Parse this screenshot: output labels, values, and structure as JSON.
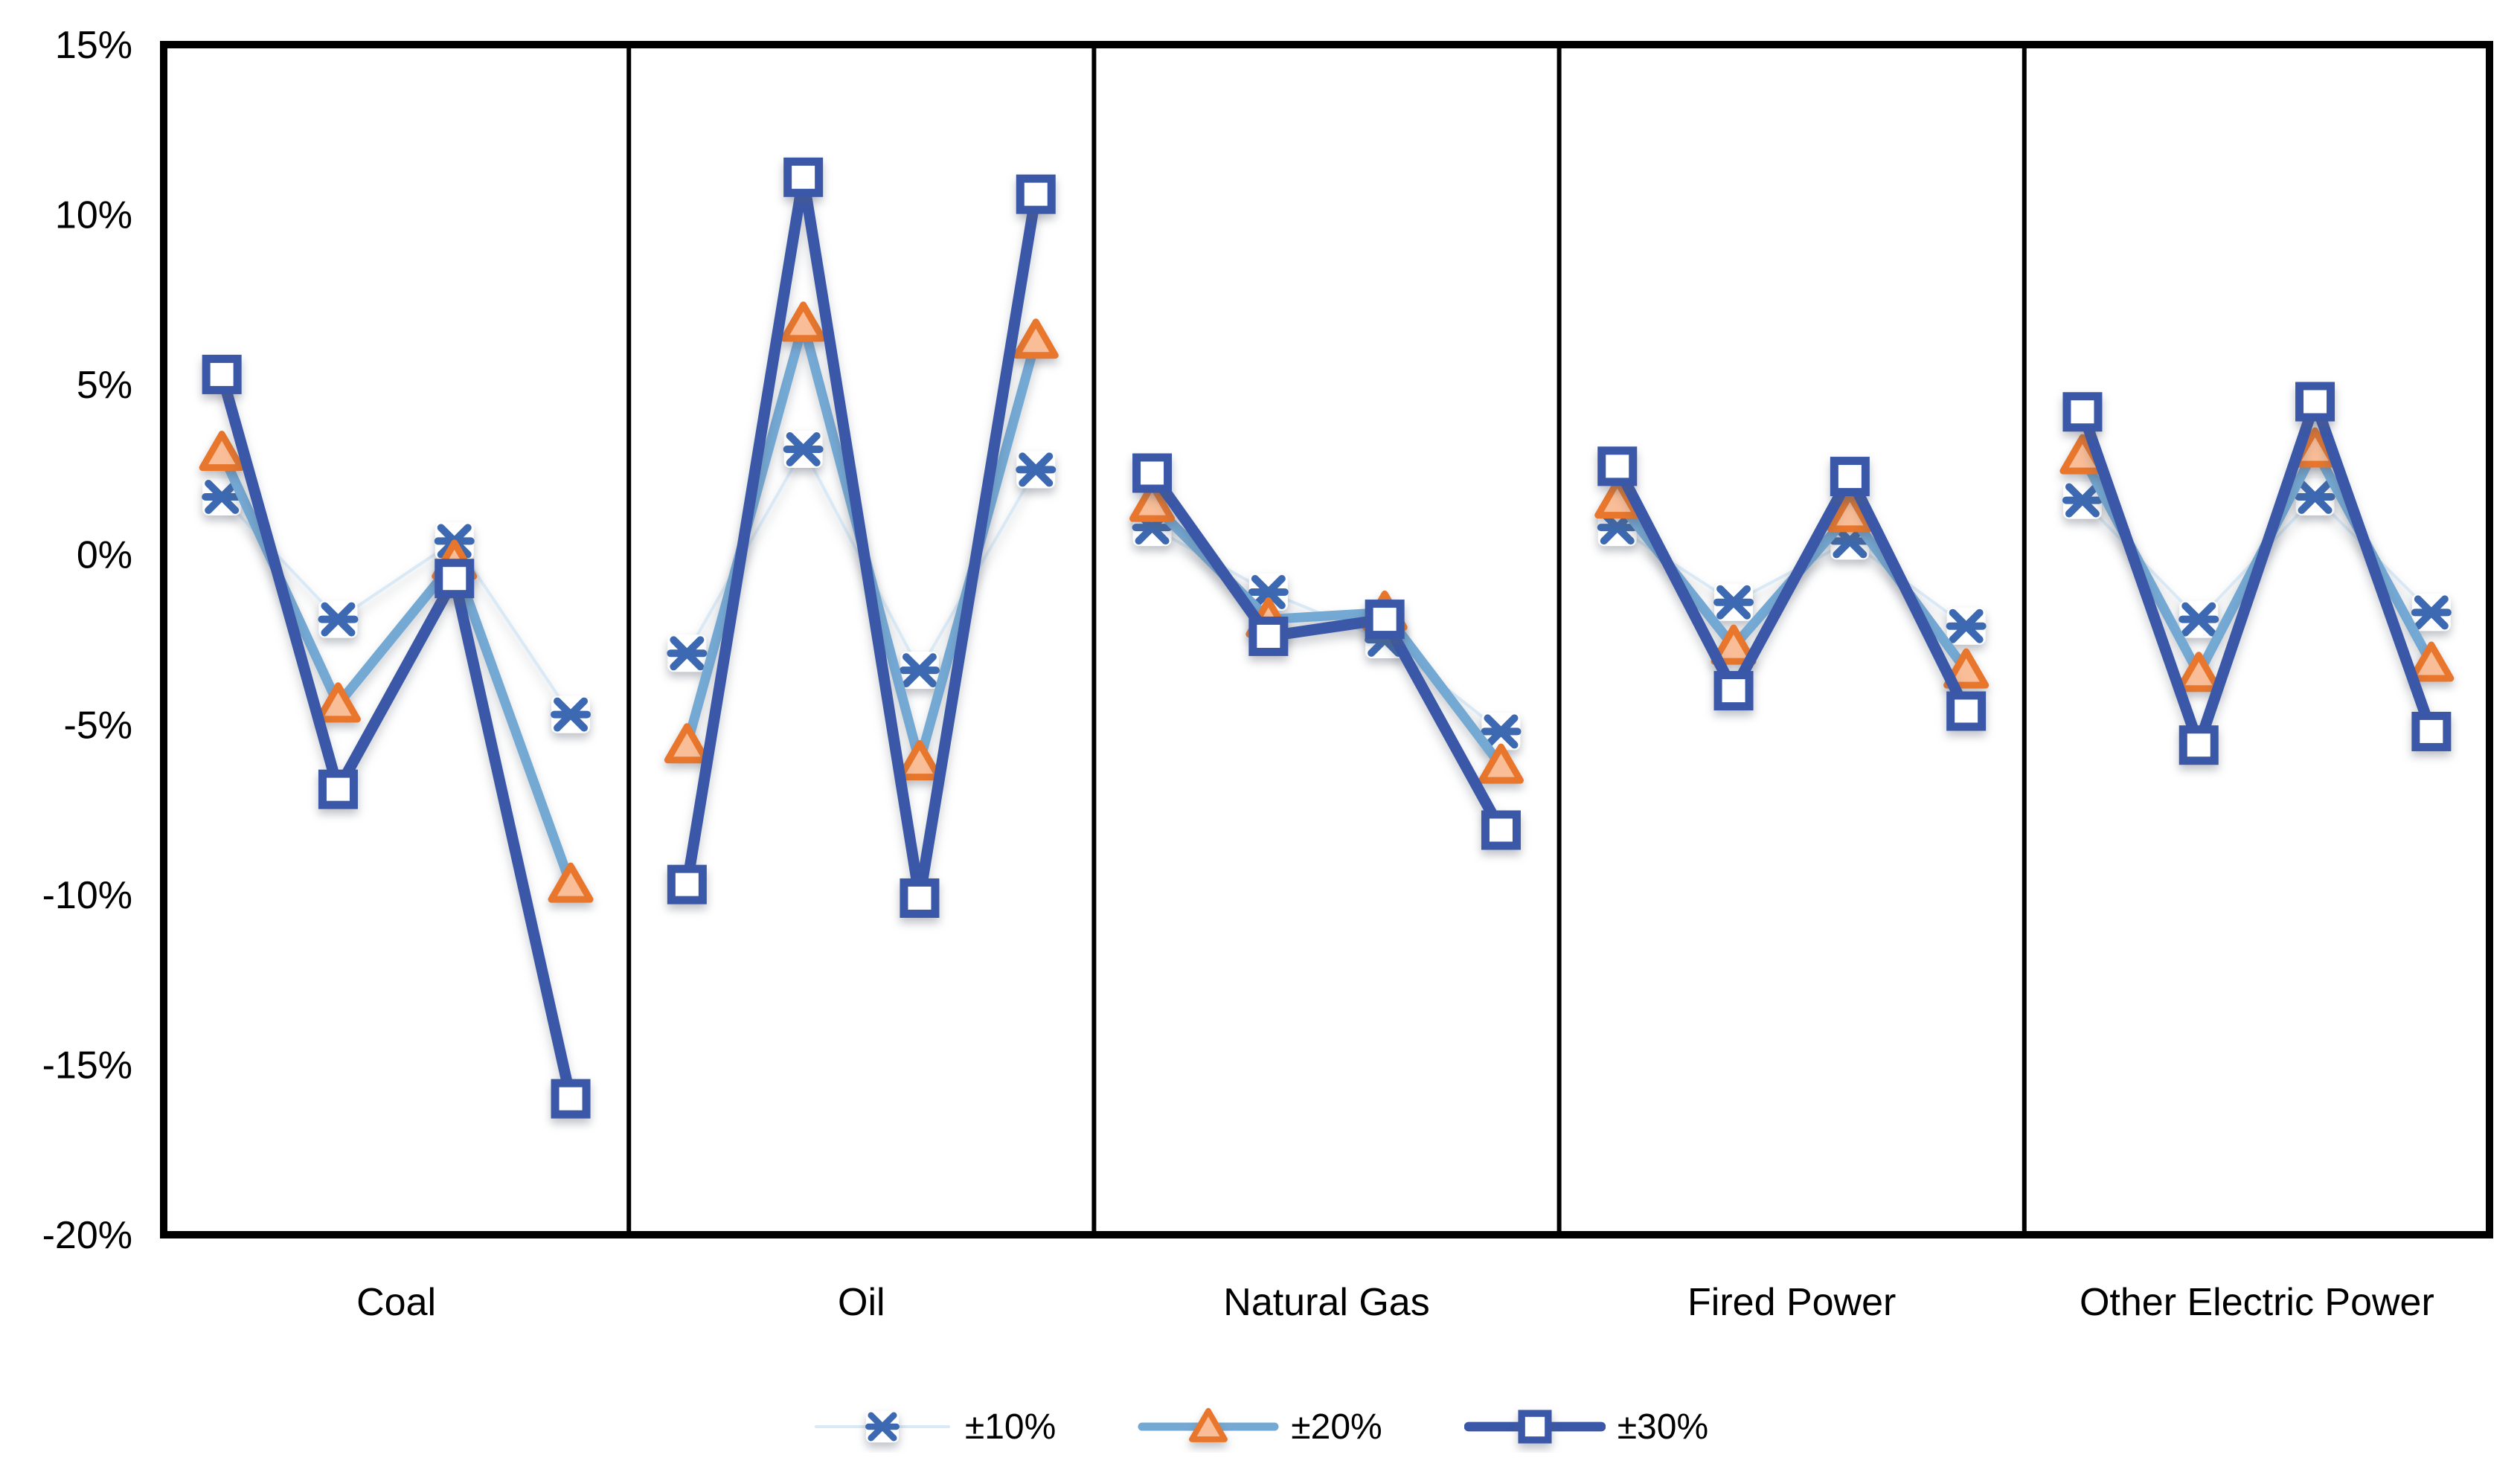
{
  "chart_data": {
    "type": "line",
    "title": "",
    "xlabel": "",
    "ylabel": "",
    "grid": false,
    "legend_position": "bottom",
    "background": "#ffffff",
    "axis_color": "#000000",
    "text_color": "#000000",
    "ylim": [
      -20,
      15
    ],
    "y_ticks": [
      {
        "v": 15,
        "label": "15%"
      },
      {
        "v": 10,
        "label": "10%"
      },
      {
        "v": 5,
        "label": "5%"
      },
      {
        "v": 0,
        "label": "0%"
      },
      {
        "v": -5,
        "label": "-5%"
      },
      {
        "v": -10,
        "label": "-10%"
      },
      {
        "v": -15,
        "label": "-15%"
      },
      {
        "v": -20,
        "label": "-20%"
      }
    ],
    "panels": [
      "Coal",
      "Oil",
      "Natural Gas",
      "Fired Power",
      "Other Electric Power"
    ],
    "points_per_panel": 4,
    "series": [
      {
        "name": "±10%",
        "marker": "asterisk",
        "marker_color": "#3c69b1",
        "line_color": "#d9e9f5",
        "line_width": 4,
        "values": [
          [
            1.7,
            -1.9,
            0.4,
            -4.7
          ],
          [
            -2.9,
            3.1,
            -3.4,
            2.5
          ],
          [
            0.8,
            -1.1,
            -2.5,
            -5.2
          ],
          [
            0.8,
            -1.4,
            0.4,
            -2.1
          ],
          [
            1.6,
            -1.9,
            1.7,
            -1.7
          ]
        ]
      },
      {
        "name": "±20%",
        "marker": "triangle",
        "marker_color": "#e8762c",
        "marker_fill": "#f9bd97",
        "line_color": "#74a9d4",
        "line_width": 13,
        "values": [
          [
            3.0,
            -4.4,
            -0.2,
            -9.7
          ],
          [
            -5.6,
            6.8,
            -6.1,
            6.3
          ],
          [
            1.5,
            -1.9,
            -1.7,
            -6.2
          ],
          [
            1.6,
            -2.7,
            1.2,
            -3.4
          ],
          [
            2.9,
            -3.5,
            3.1,
            -3.2
          ]
        ]
      },
      {
        "name": "±30%",
        "marker": "square",
        "marker_color": "#3a57a8",
        "line_color": "#3a57a8",
        "line_width": 15,
        "values": [
          [
            5.3,
            -6.9,
            -0.7,
            -16.0
          ],
          [
            -9.7,
            11.1,
            -10.1,
            10.6
          ],
          [
            2.4,
            -2.4,
            -1.9,
            -8.1
          ],
          [
            2.6,
            -4.0,
            2.3,
            -4.6
          ],
          [
            4.2,
            -5.6,
            4.5,
            -5.2
          ]
        ]
      }
    ]
  }
}
